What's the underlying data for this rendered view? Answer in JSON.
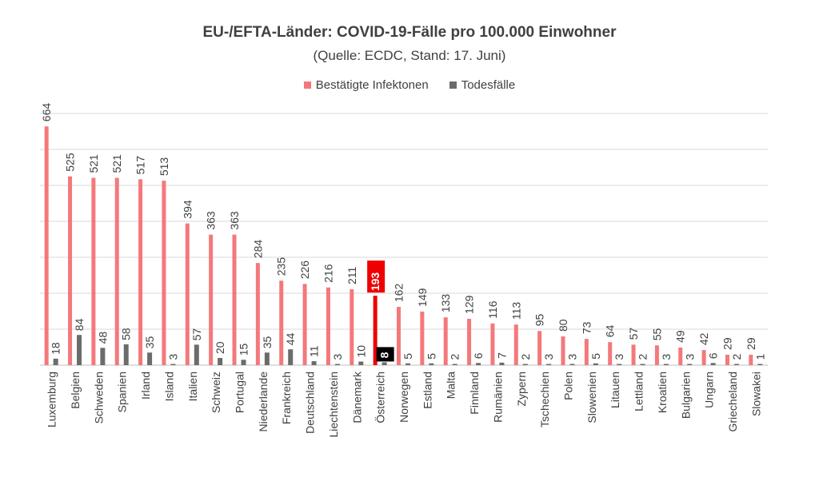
{
  "chart_data": {
    "type": "bar",
    "title": "EU-/EFTA-Länder: COVID-19-Fälle pro 100.000 Einwohner",
    "subtitle": "(Quelle: ECDC, Stand: 17. Juni)",
    "categories": [
      "Luxemburg",
      "Belgien",
      "Schweden",
      "Spanien",
      "Irland",
      "Island",
      "Italien",
      "Schweiz",
      "Portugal",
      "Niederlande",
      "Frankreich",
      "Deutschland",
      "Liechtenstein",
      "Dänemark",
      "Österreich",
      "Norwegen",
      "Estland",
      "Malta",
      "Finnland",
      "Rumänien",
      "Zypern",
      "Tschechien",
      "Polen",
      "Slowenien",
      "Litauen",
      "Lettland",
      "Kroatien",
      "Bulgarien",
      "Ungarn",
      "Griecheland",
      "Slowakei"
    ],
    "series": [
      {
        "name": "Bestätigte Infektonen",
        "color": "#f4787b",
        "values": [
          664,
          525,
          521,
          521,
          517,
          513,
          394,
          363,
          363,
          284,
          235,
          226,
          216,
          211,
          193,
          162,
          149,
          133,
          129,
          116,
          113,
          95,
          80,
          73,
          64,
          57,
          55,
          49,
          42,
          29,
          29
        ]
      },
      {
        "name": "Todesfälle",
        "color": "#6b6b6b",
        "values": [
          18,
          84,
          48,
          58,
          35,
          3,
          57,
          20,
          15,
          35,
          44,
          11,
          3,
          10,
          8,
          5,
          5,
          2,
          6,
          7,
          2,
          3,
          3,
          5,
          3,
          2,
          3,
          3,
          6,
          2,
          1
        ]
      }
    ],
    "highlight": {
      "category": "Österreich",
      "infections_color": "#ee0000",
      "deaths_color": "#000000"
    },
    "ylim": [
      0,
      700
    ],
    "gridlines": true,
    "legend_position": "top"
  }
}
